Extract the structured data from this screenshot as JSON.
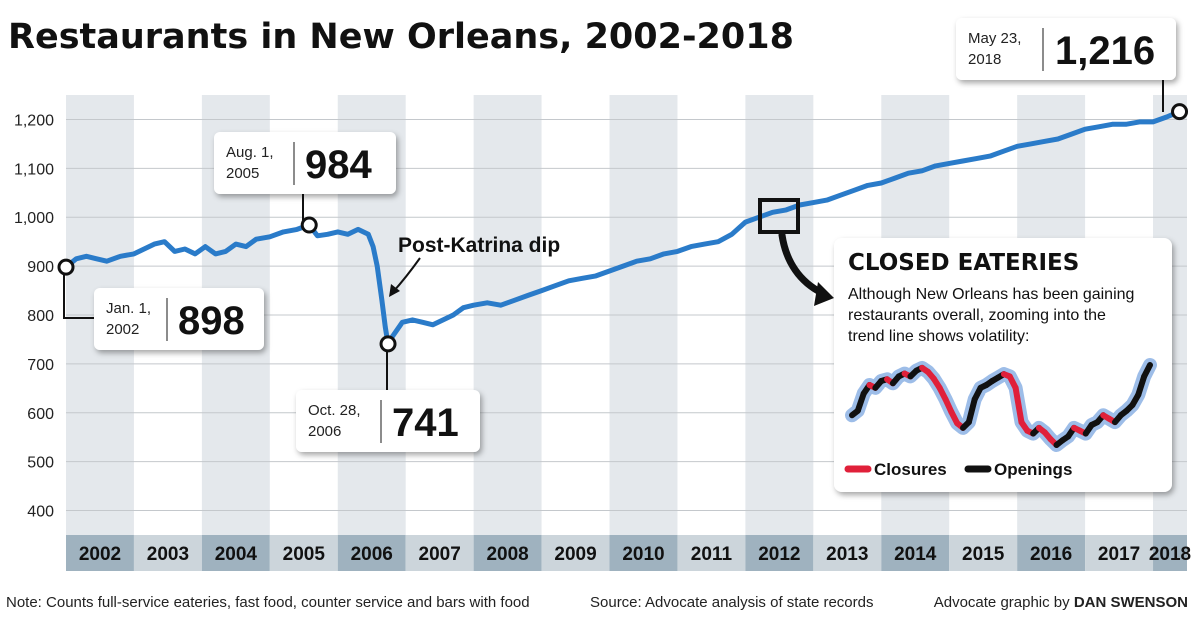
{
  "chart_data": {
    "type": "line",
    "title": "Restaurants in New Orleans, 2002-2018",
    "xlabel": "",
    "ylabel": "",
    "xlim": [
      2002,
      2018.5
    ],
    "ylim": [
      350,
      1250
    ],
    "yticks": [
      400,
      500,
      600,
      700,
      800,
      900,
      1000,
      1100,
      1200
    ],
    "ytick_labels": [
      "400",
      "500",
      "600",
      "700",
      "800",
      "900",
      "1,000",
      "1,100",
      "1,200"
    ],
    "categories": [
      "2002",
      "2003",
      "2004",
      "2005",
      "2006",
      "2007",
      "2008",
      "2009",
      "2010",
      "2011",
      "2012",
      "2013",
      "2014",
      "2015",
      "2016",
      "2017",
      "2018"
    ],
    "grid": true,
    "series": [
      {
        "color": "#2a7bc9",
        "x": [
          2002.0,
          2002.15,
          2002.3,
          2002.45,
          2002.6,
          2002.8,
          2003.0,
          2003.15,
          2003.3,
          2003.45,
          2003.6,
          2003.75,
          2003.9,
          2004.05,
          2004.2,
          2004.35,
          2004.5,
          2004.65,
          2004.8,
          2005.0,
          2005.2,
          2005.4,
          2005.58,
          2005.7,
          2005.85,
          2006.0,
          2006.15,
          2006.3,
          2006.45,
          2006.52,
          2006.58,
          2006.65,
          2006.7,
          2006.74,
          2006.8,
          2006.95,
          2007.1,
          2007.25,
          2007.4,
          2007.55,
          2007.7,
          2007.85,
          2008.0,
          2008.2,
          2008.4,
          2008.6,
          2008.8,
          2009.0,
          2009.2,
          2009.4,
          2009.6,
          2009.8,
          2010.0,
          2010.2,
          2010.4,
          2010.6,
          2010.8,
          2011.0,
          2011.2,
          2011.4,
          2011.6,
          2011.8,
          2012.0,
          2012.2,
          2012.4,
          2012.6,
          2012.8,
          2013.0,
          2013.2,
          2013.4,
          2013.6,
          2013.8,
          2014.0,
          2014.2,
          2014.4,
          2014.6,
          2014.8,
          2015.0,
          2015.2,
          2015.4,
          2015.6,
          2015.8,
          2016.0,
          2016.2,
          2016.4,
          2016.6,
          2016.8,
          2017.0,
          2017.2,
          2017.4,
          2017.6,
          2017.8,
          2018.0,
          2018.2,
          2018.39
        ],
        "values": [
          898,
          915,
          920,
          915,
          910,
          920,
          925,
          935,
          945,
          950,
          930,
          935,
          925,
          940,
          925,
          930,
          945,
          940,
          955,
          960,
          970,
          975,
          984,
          962,
          965,
          970,
          965,
          975,
          965,
          940,
          900,
          830,
          775,
          741,
          755,
          785,
          790,
          785,
          780,
          790,
          800,
          815,
          820,
          825,
          820,
          830,
          840,
          850,
          860,
          870,
          875,
          880,
          890,
          900,
          910,
          915,
          925,
          930,
          940,
          945,
          950,
          965,
          990,
          1000,
          1010,
          1015,
          1025,
          1030,
          1035,
          1045,
          1055,
          1065,
          1070,
          1080,
          1090,
          1095,
          1105,
          1110,
          1115,
          1120,
          1125,
          1135,
          1145,
          1150,
          1155,
          1160,
          1170,
          1180,
          1185,
          1190,
          1190,
          1195,
          1195,
          1205,
          1216
        ]
      }
    ],
    "annotations": [
      {
        "date_line1": "Jan. 1,",
        "date_line2": "2002",
        "value": "898"
      },
      {
        "date_line1": "Aug. 1,",
        "date_line2": "2005",
        "value": "984"
      },
      {
        "date_line1": "Oct. 28,",
        "date_line2": "2006",
        "value": "741"
      },
      {
        "date_line1": "May 23,",
        "date_line2": "2018",
        "value": "1,216"
      }
    ],
    "callout": "Post-Katrina dip",
    "inset": {
      "title": "CLOSED EATERIES",
      "text_lines": [
        "Although New Orleans has been gaining",
        "restaurants overall, zooming into the",
        "trend line shows volatility:"
      ],
      "legend": [
        {
          "label": "Closures",
          "color": "#e0203a"
        },
        {
          "label": "Openings",
          "color": "#111111"
        }
      ],
      "series_values": [
        612,
        620,
        650,
        665,
        660,
        672,
        675,
        668,
        680,
        685,
        680,
        690,
        695,
        688,
        676,
        660,
        640,
        618,
        598,
        590,
        600,
        640,
        660,
        665,
        672,
        678,
        684,
        680,
        660,
        600,
        585,
        580,
        590,
        582,
        570,
        560,
        568,
        575,
        590,
        585,
        580,
        595,
        600,
        612,
        606,
        600,
        612,
        620,
        630,
        648,
        680,
        700
      ],
      "series_types": [
        "open",
        "open",
        "open",
        "open",
        "close",
        "open",
        "open",
        "close",
        "open",
        "open",
        "close",
        "open",
        "open",
        "close",
        "close",
        "close",
        "close",
        "close",
        "close",
        "close",
        "open",
        "open",
        "open",
        "open",
        "open",
        "open",
        "open",
        "close",
        "close",
        "close",
        "close",
        "close",
        "open",
        "close",
        "close",
        "close",
        "open",
        "open",
        "open",
        "close",
        "close",
        "open",
        "open",
        "open",
        "close",
        "close",
        "open",
        "open",
        "open",
        "open",
        "open",
        "open"
      ]
    }
  },
  "footer": {
    "note": "Note: Counts full-service eateries, fast food, counter service and bars with food",
    "source": "Source: Advocate analysis of state records",
    "credit_prefix": "Advocate graphic by ",
    "credit_name": "DAN SWENSON"
  }
}
